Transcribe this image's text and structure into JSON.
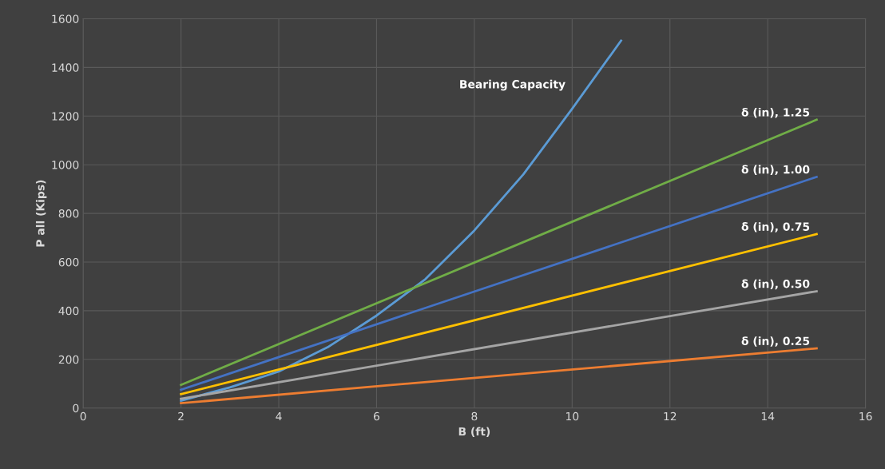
{
  "chart_data": {
    "type": "line",
    "xlabel": "B (ft)",
    "ylabel": "P all (Kips)",
    "xlim": [
      0,
      16
    ],
    "xticks": [
      0,
      2,
      4,
      6,
      8,
      10,
      12,
      14,
      16
    ],
    "ylim": [
      0,
      1600
    ],
    "yticks": [
      0,
      200,
      400,
      600,
      800,
      1000,
      1200,
      1400,
      1600
    ],
    "grid": true,
    "series": [
      {
        "name": "Bearing Capacity",
        "color": "#5b9bd5",
        "x": [
          2,
          3,
          4,
          5,
          6,
          7,
          8,
          9,
          10,
          11
        ],
        "values": [
          30,
          85,
          150,
          250,
          380,
          530,
          730,
          960,
          1230,
          1510
        ]
      },
      {
        "name": "δ (in), 1.25",
        "color": "#70ad47",
        "x": [
          2,
          15
        ],
        "values": [
          95,
          1185
        ]
      },
      {
        "name": "δ (in), 1.00",
        "color": "#4472c4",
        "x": [
          2,
          15
        ],
        "values": [
          75,
          950
        ]
      },
      {
        "name": "δ (in), 0.75",
        "color": "#ffc000",
        "x": [
          2,
          15
        ],
        "values": [
          57,
          715
        ]
      },
      {
        "name": "δ (in), 0.50",
        "color": "#a5a5a5",
        "x": [
          2,
          15
        ],
        "values": [
          38,
          480
        ]
      },
      {
        "name": "δ (in), 0.25",
        "color": "#ed7d31",
        "x": [
          2,
          15
        ],
        "values": [
          20,
          245
        ]
      }
    ]
  }
}
